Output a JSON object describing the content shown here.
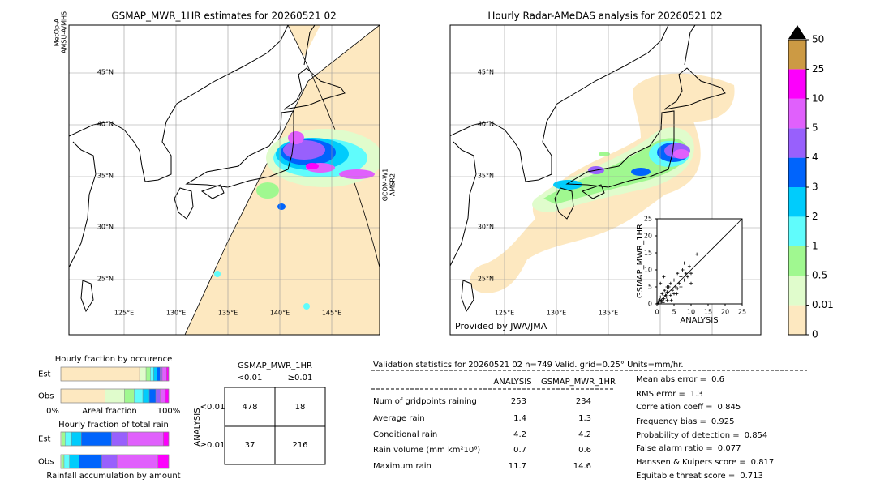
{
  "left_map": {
    "title": "GSMAP_MWR_1HR estimates for 20260521 02",
    "sat_labels": [
      "MetOp-A",
      "AMSU-A/MHS",
      "GCOM-W1",
      "AMSR2"
    ],
    "lat_labels": [
      "45°N",
      "40°N",
      "35°N",
      "30°N",
      "25°N"
    ],
    "lon_labels": [
      "125°E",
      "130°E",
      "135°E",
      "140°E",
      "145°E"
    ]
  },
  "right_map": {
    "title": "Hourly Radar-AMeDAS analysis for 20260521 02",
    "credit": "Provided by JWA/JMA",
    "lat_labels": [
      "45°N",
      "40°N",
      "35°N",
      "30°N",
      "25°N"
    ],
    "lon_labels": [
      "125°E",
      "130°E",
      "135°E"
    ]
  },
  "colorbar": {
    "ticks": [
      0,
      0.01,
      0.5,
      1,
      2,
      3,
      4,
      5,
      10,
      25,
      50
    ],
    "colors": [
      "#fde8c0",
      "#e0fccc",
      "#a0f890",
      "#60fcfc",
      "#00ccfc",
      "#0064fc",
      "#9860fc",
      "#e060fc",
      "#fc00fc",
      "#cc9a44"
    ]
  },
  "scatter": {
    "type": "scatter",
    "xlabel": "ANALYSIS",
    "ylabel": "GSMAP_MWR_1HR",
    "xlim": [
      0,
      25
    ],
    "ylim": [
      0,
      25
    ],
    "xticks": [
      0,
      5,
      10,
      15,
      20,
      25
    ],
    "yticks": [
      0,
      5,
      10,
      15,
      20,
      25
    ],
    "x": [
      0.5,
      1,
      1.2,
      1.5,
      2,
      2.2,
      2.5,
      3,
      3,
      3.5,
      4,
      4,
      4.5,
      5,
      5,
      5.5,
      6,
      6,
      6.5,
      7,
      7,
      7.5,
      8,
      8,
      8.5,
      9,
      9.5,
      10,
      10,
      11.7,
      1,
      2,
      3,
      0.8,
      1.8,
      2.8,
      4.2,
      5.8,
      0.3,
      1.4
    ],
    "y": [
      0.8,
      2,
      0.5,
      3,
      1.5,
      4,
      2.5,
      3.5,
      1,
      5,
      2.5,
      6,
      4,
      3,
      7,
      5,
      4.5,
      9,
      6,
      8,
      5,
      10,
      7,
      12,
      9,
      8,
      11,
      9,
      6,
      14.6,
      6,
      8,
      5,
      1.2,
      0.4,
      2,
      1,
      3,
      0.2,
      1.1
    ]
  },
  "occurrence": {
    "title": "Hourly fraction by occurence",
    "xlabel": "Areal fraction",
    "left_label": "0%",
    "right_label": "100%",
    "rows": [
      {
        "name": "Est",
        "values": [
          0.73,
          0.06,
          0.04,
          0.03,
          0.03,
          0.03,
          0.02,
          0.04,
          0.02,
          0
        ]
      },
      {
        "name": "Obs",
        "values": [
          0.41,
          0.18,
          0.09,
          0.08,
          0.06,
          0.06,
          0.04,
          0.05,
          0.03,
          0
        ]
      }
    ]
  },
  "accumulation": {
    "title": "Hourly fraction of total rain",
    "xlabel": "Rainfall accumulation by amount",
    "rows": [
      {
        "name": "Est",
        "values": [
          0,
          0.01,
          0.03,
          0.06,
          0.09,
          0.28,
          0.15,
          0.33,
          0.05,
          0
        ]
      },
      {
        "name": "Obs",
        "values": [
          0,
          0.01,
          0.02,
          0.05,
          0.09,
          0.21,
          0.14,
          0.38,
          0.1,
          0
        ]
      }
    ]
  },
  "contingency": {
    "title": "GSMAP_MWR_1HR",
    "columns": [
      "<0.01",
      "≥0.01"
    ],
    "ylabel": "ANALYSIS",
    "rows": [
      "<0.01",
      "≥0.01"
    ],
    "cells": [
      [
        478,
        18
      ],
      [
        37,
        216
      ]
    ]
  },
  "validation": {
    "header": "Validation statistics for 20260521 02  n=749 Valid. grid=0.25° Units=mm/hr.",
    "columns": [
      "ANALYSIS",
      "GSMAP_MWR_1HR"
    ],
    "rows": [
      {
        "label": "Num of gridpoints raining",
        "values": [
          253,
          234
        ]
      },
      {
        "label": "Average rain",
        "values": [
          1.4,
          1.3
        ]
      },
      {
        "label": "Conditional rain",
        "values": [
          4.2,
          4.2
        ]
      },
      {
        "label": "Rain volume (mm km²10⁶)",
        "values": [
          0.7,
          0.6
        ]
      },
      {
        "label": "Maximum rain",
        "values": [
          11.7,
          14.6
        ]
      }
    ],
    "scores": [
      {
        "label": "Mean abs error =",
        "value": 0.6
      },
      {
        "label": "RMS error =",
        "value": 1.3
      },
      {
        "label": "Correlation coeff =",
        "value": 0.845
      },
      {
        "label": "Frequency bias =",
        "value": 0.925
      },
      {
        "label": "Probability of detection =",
        "value": 0.854
      },
      {
        "label": "False alarm ratio =",
        "value": 0.077
      },
      {
        "label": "Hanssen & Kuipers score =",
        "value": 0.817
      },
      {
        "label": "Equitable threat score =",
        "value": 0.713
      }
    ]
  }
}
